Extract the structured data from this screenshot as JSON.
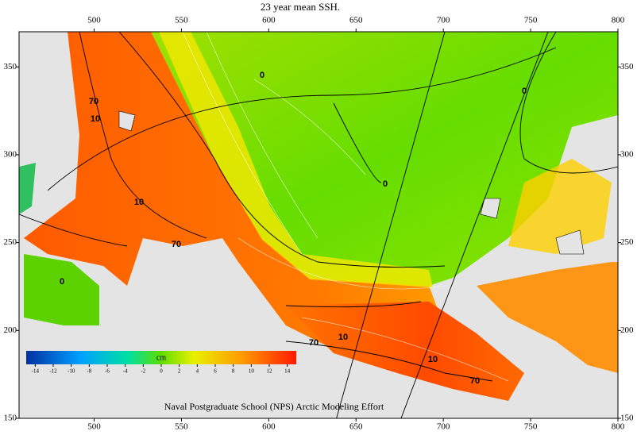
{
  "title": "23 year mean SSH.",
  "map": {
    "xlim": [
      457,
      800
    ],
    "ylim": [
      150,
      370
    ],
    "xticks": [
      500,
      550,
      600,
      650,
      700,
      750,
      800
    ],
    "yticks": [
      150,
      200,
      250,
      300,
      350
    ],
    "contour_labels": [
      "0",
      "0",
      "0",
      "0",
      "70",
      "10",
      "10",
      "70",
      "70",
      "10",
      "10",
      "70"
    ]
  },
  "colorbar": {
    "label": "cm",
    "lim": [
      -15,
      15
    ],
    "ticks": [
      -14,
      -12,
      -10,
      -8,
      -6,
      -4,
      -2,
      0,
      2,
      4,
      6,
      8,
      10,
      12,
      14
    ]
  },
  "footer": "Naval Postgraduate School (NPS) Arctic Modeling Effort"
}
